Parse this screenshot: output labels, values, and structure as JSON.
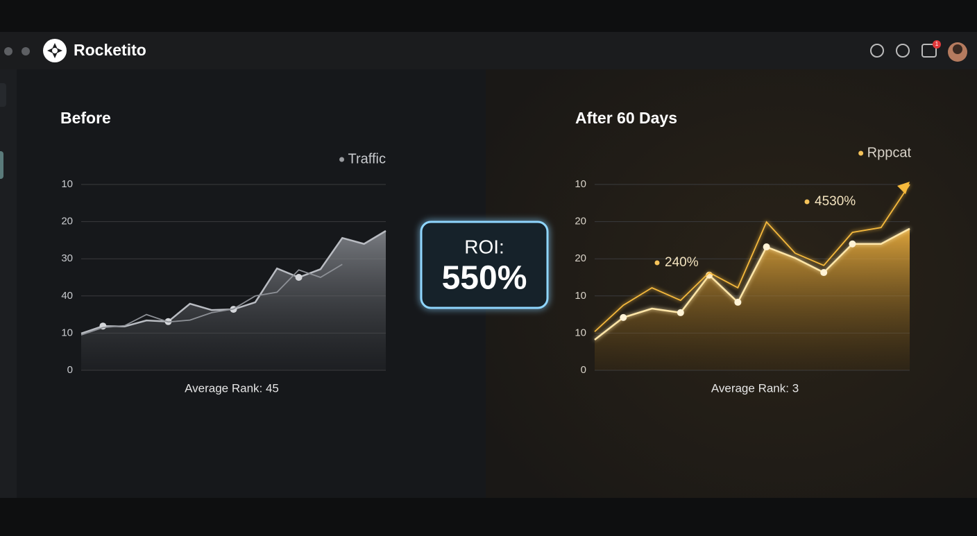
{
  "header": {
    "title": "Rocketito",
    "badge": "1"
  },
  "roi": {
    "label": "ROI:",
    "value": "550%"
  },
  "chart_data": [
    {
      "type": "area",
      "title": "Before",
      "legend": "Traffic",
      "footer": "Average Rank: 45",
      "categories": [
        null,
        null,
        null,
        null,
        null,
        null,
        null,
        null,
        null,
        null,
        null,
        null,
        null,
        null,
        null
      ],
      "series": [
        {
          "name": "Traffic",
          "color": "#b9bcc2",
          "values": [
            0.99,
            1.19,
            1.18,
            1.34,
            1.31,
            1.79,
            1.62,
            1.64,
            1.83,
            2.74,
            2.5,
            2.72,
            3.56,
            3.4,
            3.75
          ]
        },
        {
          "color": "#8d9096",
          "values": [
            0.95,
            1.15,
            1.2,
            1.5,
            1.3,
            1.35,
            1.55,
            1.65,
            2.0,
            2.1,
            2.7,
            2.5,
            2.85,
            null,
            null
          ]
        }
      ],
      "ylim": [
        0,
        5
      ],
      "yticks": [
        0,
        {
          "value": 1,
          "label": "10"
        },
        {
          "value": 2,
          "label": "40"
        },
        {
          "value": 3,
          "label": "30"
        },
        {
          "value": 4,
          "label": "20"
        },
        {
          "value": 5,
          "label": "10"
        }
      ],
      "grid": true,
      "annotations": []
    },
    {
      "type": "area",
      "title": "After 60 Days",
      "legend": "Rppcat",
      "footer": "Average Rank: 3",
      "categories": [
        null,
        null,
        null,
        null,
        null,
        null,
        null,
        null,
        null,
        null,
        null,
        null
      ],
      "series": [
        {
          "name": "Rppcat",
          "color": "#ffe6a8",
          "values": [
            0.82,
            1.42,
            1.66,
            1.55,
            2.56,
            1.83,
            3.32,
            3.02,
            2.63,
            3.4,
            3.4,
            3.81
          ]
        },
        {
          "color": "#f5b93c",
          "values": [
            1.04,
            1.75,
            2.22,
            1.88,
            2.63,
            2.22,
            3.99,
            3.15,
            2.82,
            3.71,
            3.84,
            5.0
          ]
        }
      ],
      "ylim": [
        0,
        5
      ],
      "yticks": [
        0,
        {
          "value": 1,
          "label": "10"
        },
        {
          "value": 2,
          "label": "10"
        },
        {
          "value": 3,
          "label": "20"
        },
        {
          "value": 4,
          "label": "20"
        },
        {
          "value": 5,
          "label": "10"
        }
      ],
      "grid": true,
      "annotations": [
        "240%",
        "4530%"
      ]
    }
  ]
}
